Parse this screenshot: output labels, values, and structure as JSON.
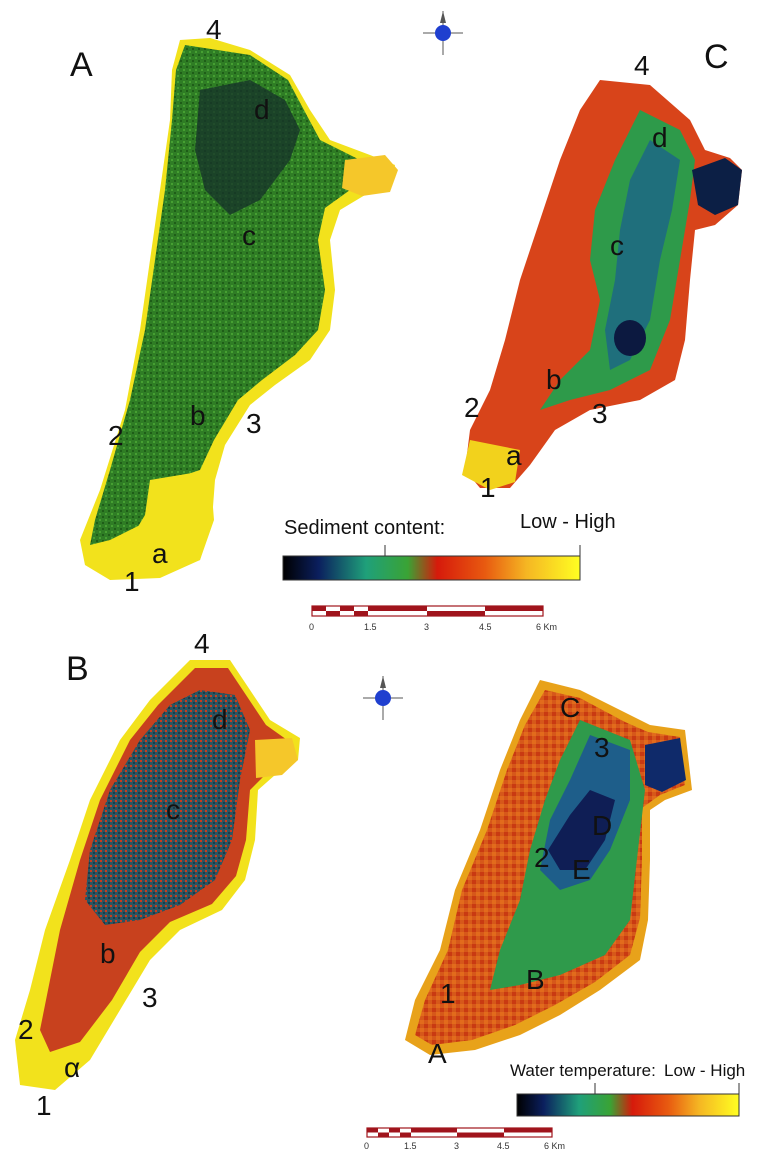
{
  "panel_a": {
    "letter": "A",
    "points": {
      "p1": "1",
      "p2": "2",
      "p3": "3",
      "p4": "4"
    },
    "zones": {
      "a": "a",
      "b": "b",
      "c": "c",
      "d": "d"
    }
  },
  "panel_b": {
    "letter": "B",
    "points": {
      "p1": "1",
      "p2": "2",
      "p3": "3",
      "p4": "4"
    },
    "zones": {
      "a": "α",
      "b": "b",
      "c": "c",
      "d": "d"
    }
  },
  "panel_c": {
    "letter": "C",
    "points": {
      "p1": "1",
      "p2": "2",
      "p3": "3",
      "p4": "4"
    },
    "zones": {
      "a": "a",
      "b": "b",
      "c": "c",
      "d": "d"
    }
  },
  "panel_d": {
    "zones": {
      "A": "A",
      "B": "B",
      "C": "C",
      "D": "D",
      "E": "E"
    },
    "points": {
      "p1": "1",
      "p2": "2",
      "p3": "3"
    }
  },
  "legend_sediment": {
    "title": "Sediment content:",
    "range": "Low - High"
  },
  "legend_temperature": {
    "title": "Water temperature:",
    "range": "Low - High"
  },
  "scale_top": {
    "ticks": [
      "0",
      "1.5",
      "3",
      "4.5",
      "6 Km"
    ]
  },
  "scale_bottom": {
    "ticks": [
      "0",
      "1.5",
      "3",
      "4.5",
      "6 Km"
    ]
  },
  "colors": {
    "ramp": [
      "#000000",
      "#0b1f5e",
      "#1fa07a",
      "#3aa335",
      "#d61a0b",
      "#e85a10",
      "#f5b623",
      "#ffff22"
    ],
    "green_water": "#2f7d25",
    "yellow_shore": "#f2e21c",
    "red_shore": "#c8371a",
    "dark_water": "#182848",
    "teal_water": "#1f8d6f",
    "north_arrow": "#1f3fcf"
  }
}
